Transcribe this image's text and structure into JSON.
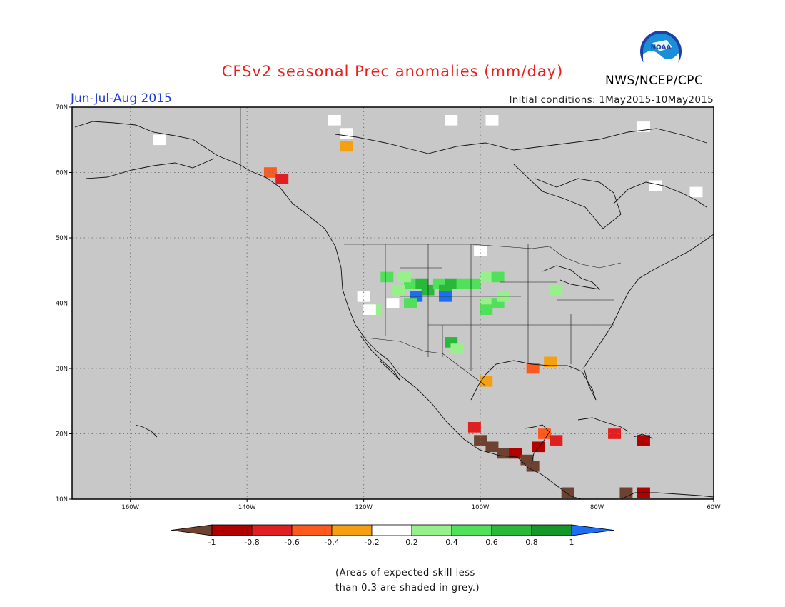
{
  "title": "CFSv2 seasonal Prec anomalies (mm/day)",
  "organization": "NWS/NCEP/CPC",
  "logo_text": "NOAA",
  "season": "Jun-Jul-Aug 2015",
  "initial_conditions": "Initial conditions: 1May2015-10May2015",
  "footnote": [
    "(Areas of expected skill less",
    "than 0.3 are shaded in grey.)"
  ],
  "map": {
    "lon_range": [
      -170,
      -60
    ],
    "lat_range": [
      10,
      70
    ],
    "background_color": "#c8c8c8",
    "lon_ticks": [
      {
        "value": -160,
        "label": "160W"
      },
      {
        "value": -140,
        "label": "140W"
      },
      {
        "value": -120,
        "label": "120W"
      },
      {
        "value": -100,
        "label": "100W"
      },
      {
        "value": -80,
        "label": "80W"
      },
      {
        "value": -60,
        "label": "60W"
      }
    ],
    "lat_ticks": [
      {
        "value": 10,
        "label": "10N"
      },
      {
        "value": 20,
        "label": "20N"
      },
      {
        "value": 30,
        "label": "30N"
      },
      {
        "value": 40,
        "label": "40N"
      },
      {
        "value": 50,
        "label": "50N"
      },
      {
        "value": 60,
        "label": "60N"
      },
      {
        "value": 70,
        "label": "70N"
      }
    ],
    "grid": "dotted"
  },
  "colorbar": {
    "labels": [
      "-1",
      "-0.8",
      "-0.6",
      "-0.4",
      "-0.2",
      "0.2",
      "0.4",
      "0.6",
      "0.8",
      "1"
    ],
    "colors": [
      "#6e4230",
      "#b00000",
      "#e02020",
      "#ff5a1e",
      "#f5a010",
      "#ffffff",
      "#98f08c",
      "#50e05a",
      "#28b83a",
      "#149628",
      "#1f6ef0"
    ]
  },
  "anomaly_cells": [
    {
      "lon": -112,
      "lat": 43,
      "c": 7
    },
    {
      "lon": -110,
      "lat": 43,
      "c": 8
    },
    {
      "lon": -109,
      "lat": 42,
      "c": 8
    },
    {
      "lon": -107,
      "lat": 43,
      "c": 7
    },
    {
      "lon": -106,
      "lat": 42,
      "c": 8
    },
    {
      "lon": -105,
      "lat": 43,
      "c": 8
    },
    {
      "lon": -111,
      "lat": 41,
      "c": 10
    },
    {
      "lon": -106,
      "lat": 41,
      "c": 10
    },
    {
      "lon": -113,
      "lat": 44,
      "c": 6
    },
    {
      "lon": -103,
      "lat": 43,
      "c": 7
    },
    {
      "lon": -101,
      "lat": 43,
      "c": 7
    },
    {
      "lon": -99,
      "lat": 44,
      "c": 6
    },
    {
      "lon": -97,
      "lat": 44,
      "c": 7
    },
    {
      "lon": -116,
      "lat": 44,
      "c": 7
    },
    {
      "lon": -114,
      "lat": 42,
      "c": 6
    },
    {
      "lon": -112,
      "lat": 40,
      "c": 7
    },
    {
      "lon": -99,
      "lat": 40,
      "c": 6
    },
    {
      "lon": -97,
      "lat": 40,
      "c": 7
    },
    {
      "lon": -99,
      "lat": 39,
      "c": 7
    },
    {
      "lon": -96,
      "lat": 41,
      "c": 6
    },
    {
      "lon": -118,
      "lat": 39,
      "c": 6
    },
    {
      "lon": -105,
      "lat": 34,
      "c": 8
    },
    {
      "lon": -104,
      "lat": 33,
      "c": 6
    },
    {
      "lon": -87,
      "lat": 42,
      "c": 6
    },
    {
      "lon": -120,
      "lat": 41,
      "c": 5
    },
    {
      "lon": -115,
      "lat": 40,
      "c": 5
    },
    {
      "lon": -100,
      "lat": 48,
      "c": 5
    },
    {
      "lon": -119,
      "lat": 39,
      "c": 5
    },
    {
      "lon": -123,
      "lat": 66,
      "c": 5
    },
    {
      "lon": -105,
      "lat": 68,
      "c": 5
    },
    {
      "lon": -98,
      "lat": 68,
      "c": 5
    },
    {
      "lon": -125,
      "lat": 68,
      "c": 5
    },
    {
      "lon": -72,
      "lat": 67,
      "c": 5
    },
    {
      "lon": -70,
      "lat": 58,
      "c": 5
    },
    {
      "lon": -63,
      "lat": 57,
      "c": 5
    },
    {
      "lon": -155,
      "lat": 65,
      "c": 5
    },
    {
      "lon": -136,
      "lat": 60,
      "c": 3
    },
    {
      "lon": -134,
      "lat": 59,
      "c": 2
    },
    {
      "lon": -123,
      "lat": 64,
      "c": 4
    },
    {
      "lon": -99,
      "lat": 28,
      "c": 4
    },
    {
      "lon": -91,
      "lat": 30,
      "c": 3
    },
    {
      "lon": -88,
      "lat": 31,
      "c": 4
    },
    {
      "lon": -101,
      "lat": 21,
      "c": 2
    },
    {
      "lon": -100,
      "lat": 19,
      "c": 0
    },
    {
      "lon": -98,
      "lat": 18,
      "c": 0
    },
    {
      "lon": -96,
      "lat": 17,
      "c": 0
    },
    {
      "lon": -94,
      "lat": 17,
      "c": 1
    },
    {
      "lon": -92,
      "lat": 16,
      "c": 0
    },
    {
      "lon": -91,
      "lat": 15,
      "c": 0
    },
    {
      "lon": -90,
      "lat": 18,
      "c": 1
    },
    {
      "lon": -89,
      "lat": 20,
      "c": 3
    },
    {
      "lon": -87,
      "lat": 19,
      "c": 2
    },
    {
      "lon": -85,
      "lat": 11,
      "c": 0
    },
    {
      "lon": -77,
      "lat": 20,
      "c": 2
    },
    {
      "lon": -72,
      "lat": 19,
      "c": 1
    },
    {
      "lon": -75,
      "lat": 11,
      "c": 0
    },
    {
      "lon": -72,
      "lat": 11,
      "c": 1
    }
  ]
}
